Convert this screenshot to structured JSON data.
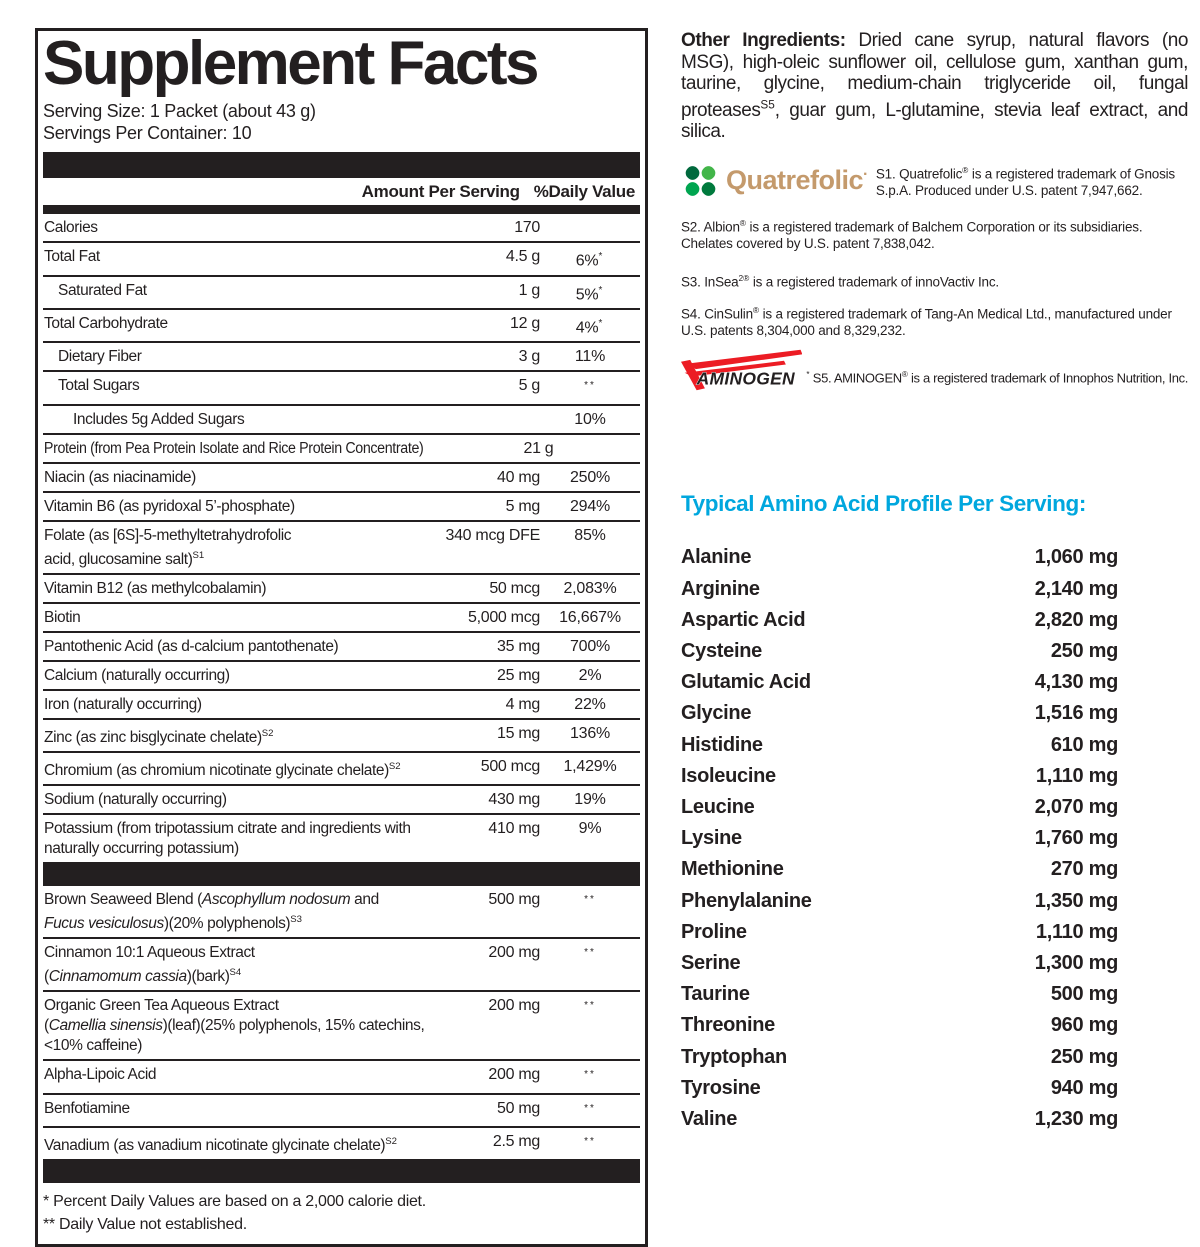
{
  "colors": {
    "ink": "#231f20",
    "cyan": "#00a7de",
    "tan": "#c49a6c",
    "red": "#ec1c24",
    "leaf1": "#00693d",
    "leaf2": "#42b549",
    "leaf3": "#00a550",
    "leaf4": "#007a3d"
  },
  "panel": {
    "title": "Supplement Facts",
    "serving_size": "Serving Size: 1 Packet (about 43 g)",
    "servings_per_container": "Servings Per Container: 10",
    "col_amount": "Amount Per Serving",
    "col_dv": "%Daily Value",
    "rows": [
      {
        "name": "Calories",
        "amt": "170",
        "dv": ""
      },
      {
        "name": "Total Fat",
        "amt": "4.5 g",
        "dv": "6%<sup>*</sup>"
      },
      {
        "name": "Saturated Fat",
        "amt": "1 g",
        "dv": "5%<sup>*</sup>",
        "cls": "ind1"
      },
      {
        "name": "Total Carbohydrate",
        "amt": "12 g",
        "dv": "4%<sup>*</sup>"
      },
      {
        "name": "Dietary Fiber",
        "amt": "3 g",
        "dv": "11%",
        "cls": "ind1"
      },
      {
        "name": "Total Sugars",
        "amt": "5 g",
        "dv": "<sup>**</sup>",
        "cls": "ind1"
      },
      {
        "name": "Includes 5g Added Sugars",
        "amt": "",
        "dv": "10%",
        "cls": "ind2"
      },
      {
        "name": "Protein (from Pea Protein Isolate and Rice Protein Concentrate)",
        "amt": "21 g",
        "dv": "",
        "cls": "sq"
      },
      {
        "name": "Niacin (as niacinamide)",
        "amt": "40 mg",
        "dv": "250%"
      },
      {
        "name": "Vitamin B6 (as pyridoxal 5’-phosphate)",
        "amt": "5 mg",
        "dv": "294%"
      },
      {
        "name": "Folate (as [6S]-5-methyltetrahydrofolic<br>acid, glucosamine salt)<sup>S1</sup>",
        "amt": "340 mcg DFE",
        "dv": "85%"
      },
      {
        "name": "Vitamin B12 (as methylcobalamin)",
        "amt": "50 mcg",
        "dv": "2,083%"
      },
      {
        "name": "Biotin",
        "amt": "5,000 mcg",
        "dv": "16,667%"
      },
      {
        "name": "Pantothenic Acid (as d-calcium pantothenate)",
        "amt": "35 mg",
        "dv": "700%"
      },
      {
        "name": "Calcium (naturally occurring)",
        "amt": "25 mg",
        "dv": "2%"
      },
      {
        "name": "Iron (naturally occurring)",
        "amt": "4 mg",
        "dv": "22%"
      },
      {
        "name": "Zinc (as zinc bisglycinate chelate)<sup>S2</sup>",
        "amt": "15 mg",
        "dv": "136%"
      },
      {
        "name": "Chromium (as chromium nicotinate glycinate chelate)<sup>S2</sup>",
        "amt": "500 mcg",
        "dv": "1,429%"
      },
      {
        "name": "Sodium (naturally occurring)",
        "amt": "430 mg",
        "dv": "19%"
      },
      {
        "name": "Potassium (from tripotassium citrate and ingredients with<br>naturally occurring potassium)",
        "amt": "410 mg",
        "dv": "9%"
      }
    ],
    "herb_rows": [
      {
        "name": "Brown Seaweed Blend (<i>Ascophyllum nodosum</i> and<br><i>Fucus vesiculosus</i>)(20% polyphenols)<sup>S3</sup>",
        "amt": "500 mg",
        "dv": "<sup>**</sup>"
      },
      {
        "name": "Cinnamon 10:1 Aqueous Extract<br>(<i>Cinnamomum cassia</i>)(bark)<sup>S4</sup>",
        "amt": "200 mg",
        "dv": "<sup>**</sup>"
      },
      {
        "name": "Organic Green Tea Aqueous Extract<br>(<i>Camellia sinensis</i>)(leaf)(25% polyphenols, 15% catechins,<br>&lt;10% caffeine)",
        "amt": "200 mg",
        "dv": "<sup>**</sup>"
      },
      {
        "name": "Alpha-Lipoic Acid",
        "amt": "200 mg",
        "dv": "<sup>**</sup>"
      },
      {
        "name": "Benfotiamine",
        "amt": "50 mg",
        "dv": "<sup>**</sup>"
      },
      {
        "name": "Vanadium (as vanadium nicotinate glycinate chelate)<sup>S2</sup>",
        "amt": "2.5 mg",
        "dv": "<sup>**</sup>"
      }
    ],
    "footnote1": "* Percent Daily Values are based on a 2,000 calorie diet.",
    "footnote2": "** Daily Value not established."
  },
  "right": {
    "oi_label": "Other Ingredients:",
    "oi_text": " Dried cane syrup, natural flavors (no MSG), high-oleic sunflower oil, cellulose gum, xanthan gum, taurine, glycine, medium-chain triglyceride oil, fungal proteases<sup>S5</sup>, guar gum, L-glutamine, stevia leaf extract, and silica.",
    "quatrefolic": {
      "wordmark": "Quatrefolic",
      "mark": "·",
      "note": "S1. Quatrefolic<sup>®</sup> is a registered trademark of Gnosis S.p.A. Produced under U.S. patent 7,947,662."
    },
    "note_s2": "S2. Albion<sup>®</sup> is a registered trademark of Balchem Corporation or its subsidiaries. Chelates covered by U.S. patent 7,838,042.",
    "note_s3": "S3. InSea<sup>2®</sup> is a registered trademark of innoVactiv Inc.",
    "note_s4": "S4. CinSulin<sup>®</sup> is a registered trademark of Tang-An Medical Ltd., manufactured under U.S. patents 8,304,000 and 8,329,232.",
    "aminogen": {
      "wordmark": "AMINOGEN",
      "note": "<sup>*</sup> S5. AMINOGEN<sup>®</sup> is a registered trademark of Innophos Nutrition, Inc."
    },
    "amino_header": "Typical Amino Acid Profile Per Serving:",
    "amino": [
      {
        "name": "Alanine",
        "value": "1,060 mg"
      },
      {
        "name": "Arginine",
        "value": "2,140 mg"
      },
      {
        "name": "Aspartic Acid",
        "value": "2,820 mg"
      },
      {
        "name": "Cysteine",
        "value": "250 mg"
      },
      {
        "name": "Glutamic Acid",
        "value": "4,130 mg"
      },
      {
        "name": "Glycine",
        "value": "1,516 mg"
      },
      {
        "name": "Histidine",
        "value": "610 mg"
      },
      {
        "name": "Isoleucine",
        "value": "1,110 mg"
      },
      {
        "name": "Leucine",
        "value": "2,070 mg"
      },
      {
        "name": "Lysine",
        "value": "1,760 mg"
      },
      {
        "name": "Methionine",
        "value": "270 mg"
      },
      {
        "name": "Phenylalanine",
        "value": "1,350 mg"
      },
      {
        "name": "Proline",
        "value": "1,110 mg"
      },
      {
        "name": "Serine",
        "value": "1,300 mg"
      },
      {
        "name": "Taurine",
        "value": "500 mg"
      },
      {
        "name": "Threonine",
        "value": "960 mg"
      },
      {
        "name": "Tryptophan",
        "value": "250 mg"
      },
      {
        "name": "Tyrosine",
        "value": "940 mg"
      },
      {
        "name": "Valine",
        "value": "1,230 mg"
      }
    ]
  }
}
